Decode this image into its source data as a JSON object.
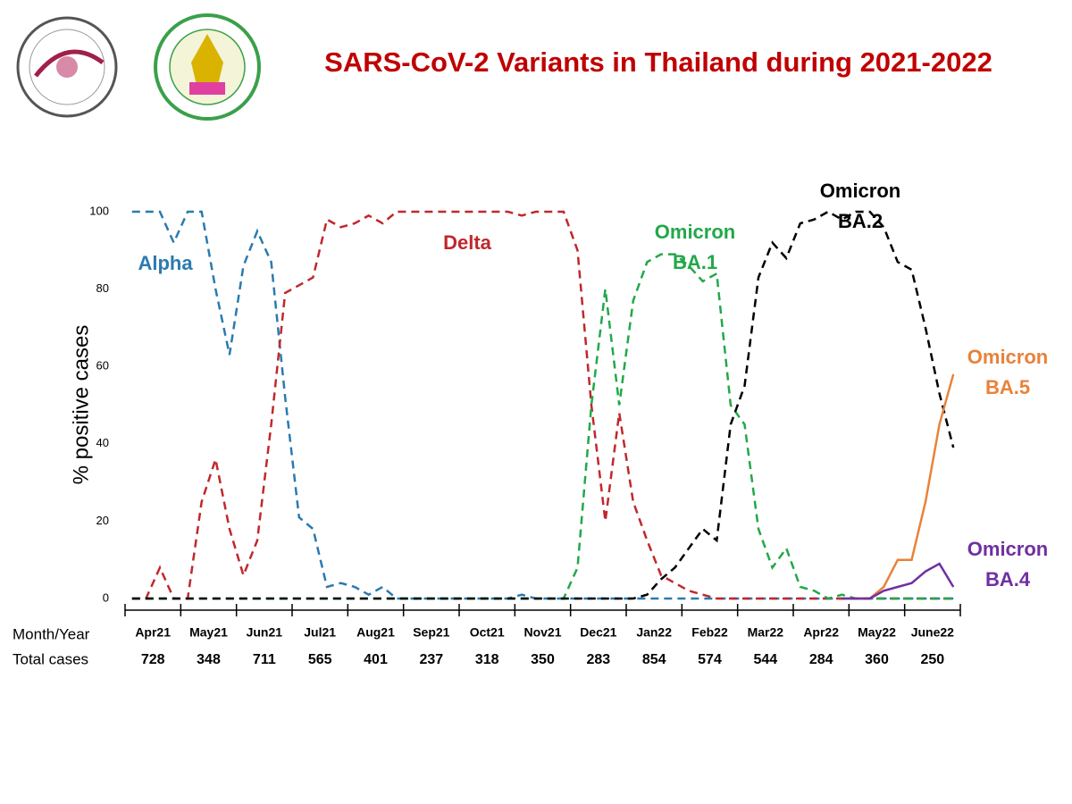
{
  "chart_data": {
    "type": "line",
    "title": "SARS-CoV-2 Variants in Thailand during 2021-2022",
    "y_label": "% positive cases",
    "row_labels": {
      "month": "Month/Year",
      "total": "Total cases"
    },
    "categories": [
      "Apr21",
      "May21",
      "Jun21",
      "Jul21",
      "Aug21",
      "Sep21",
      "Oct21",
      "Nov21",
      "Dec21",
      "Jan22",
      "Feb22",
      "Mar22",
      "Apr22",
      "May22",
      "June22"
    ],
    "total_cases": [
      728,
      348,
      711,
      565,
      401,
      237,
      318,
      350,
      283,
      854,
      574,
      544,
      284,
      360,
      250
    ],
    "x": [
      0,
      1,
      2,
      3,
      4,
      5,
      6,
      7,
      8,
      9,
      10,
      11,
      12,
      13,
      14,
      15,
      16,
      17,
      18,
      19,
      20,
      21,
      22,
      23,
      24,
      25,
      26,
      27,
      28,
      29,
      30,
      31,
      32,
      33,
      34,
      35,
      36,
      37,
      38,
      39,
      40,
      41,
      42,
      43,
      44,
      45,
      46,
      47,
      48,
      49,
      50,
      51,
      52,
      53,
      54,
      55,
      56,
      57,
      58,
      59
    ],
    "xlim": [
      -0.5,
      59.5
    ],
    "ylim": [
      0,
      100
    ],
    "yticks": [
      0,
      20,
      40,
      60,
      80,
      100
    ],
    "series": [
      {
        "name": "Alpha",
        "color": "#2a7ab0",
        "dash": true,
        "values": [
          100,
          100,
          100,
          92,
          100,
          100,
          80,
          63,
          86,
          95,
          87,
          52,
          21,
          18,
          3,
          4,
          3,
          1,
          3,
          0,
          0,
          0,
          0,
          0,
          0,
          0,
          0,
          0,
          1,
          0,
          0,
          0,
          0,
          0,
          0,
          0,
          0,
          0,
          0,
          0,
          0,
          0,
          0,
          0,
          0,
          0,
          0,
          0,
          0,
          0,
          0,
          0,
          0,
          0,
          0,
          0,
          0,
          0,
          0,
          0
        ]
      },
      {
        "name": "Delta",
        "color": "#c0282c",
        "dash": true,
        "values": [
          0,
          0,
          8,
          0,
          0,
          25,
          36,
          18,
          6,
          15,
          45,
          79,
          81,
          83,
          98,
          96,
          97,
          99,
          97,
          100,
          100,
          100,
          100,
          100,
          100,
          100,
          100,
          100,
          99,
          100,
          100,
          100,
          90,
          50,
          20,
          48,
          25,
          15,
          6,
          4,
          2,
          1,
          0,
          0,
          0,
          0,
          0,
          0,
          0,
          0,
          0,
          0,
          0,
          0,
          0,
          0,
          0,
          0,
          0,
          0
        ]
      },
      {
        "name": "Omicron BA.1",
        "color": "#22a84a",
        "dash": true,
        "values": [
          0,
          0,
          0,
          0,
          0,
          0,
          0,
          0,
          0,
          0,
          0,
          0,
          0,
          0,
          0,
          0,
          0,
          0,
          0,
          0,
          0,
          0,
          0,
          0,
          0,
          0,
          0,
          0,
          0,
          0,
          0,
          0,
          8,
          50,
          80,
          50,
          77,
          87,
          89,
          89,
          86,
          82,
          84,
          50,
          45,
          18,
          8,
          13,
          3,
          2,
          0,
          1,
          0,
          0,
          0,
          0,
          0,
          0,
          0,
          0
        ]
      },
      {
        "name": "Omicron BA.2",
        "color": "#000000",
        "dash": true,
        "values": [
          0,
          0,
          0,
          0,
          0,
          0,
          0,
          0,
          0,
          0,
          0,
          0,
          0,
          0,
          0,
          0,
          0,
          0,
          0,
          0,
          0,
          0,
          0,
          0,
          0,
          0,
          0,
          0,
          0,
          0,
          0,
          0,
          0,
          0,
          0,
          0,
          0,
          1,
          5,
          8,
          13,
          18,
          15,
          45,
          55,
          83,
          92,
          88,
          97,
          98,
          100,
          98,
          100,
          100,
          96,
          87,
          85,
          70,
          53,
          39
        ]
      },
      {
        "name": "Omicron BA.5",
        "color": "#e8823a",
        "dash": false,
        "values": [
          null,
          null,
          null,
          null,
          null,
          null,
          null,
          null,
          null,
          null,
          null,
          null,
          null,
          null,
          null,
          null,
          null,
          null,
          null,
          null,
          null,
          null,
          null,
          null,
          null,
          null,
          null,
          null,
          null,
          null,
          null,
          null,
          null,
          null,
          null,
          null,
          null,
          null,
          null,
          null,
          null,
          null,
          null,
          null,
          null,
          null,
          null,
          null,
          null,
          null,
          null,
          0,
          0,
          0,
          3,
          10,
          10,
          25,
          45,
          58
        ]
      },
      {
        "name": "Omicron BA.4",
        "color": "#7030a0",
        "dash": false,
        "values": [
          null,
          null,
          null,
          null,
          null,
          null,
          null,
          null,
          null,
          null,
          null,
          null,
          null,
          null,
          null,
          null,
          null,
          null,
          null,
          null,
          null,
          null,
          null,
          null,
          null,
          null,
          null,
          null,
          null,
          null,
          null,
          null,
          null,
          null,
          null,
          null,
          null,
          null,
          null,
          null,
          null,
          null,
          null,
          null,
          null,
          null,
          null,
          null,
          null,
          null,
          null,
          0,
          0,
          0,
          2,
          3,
          4,
          7,
          9,
          3
        ]
      }
    ]
  }
}
